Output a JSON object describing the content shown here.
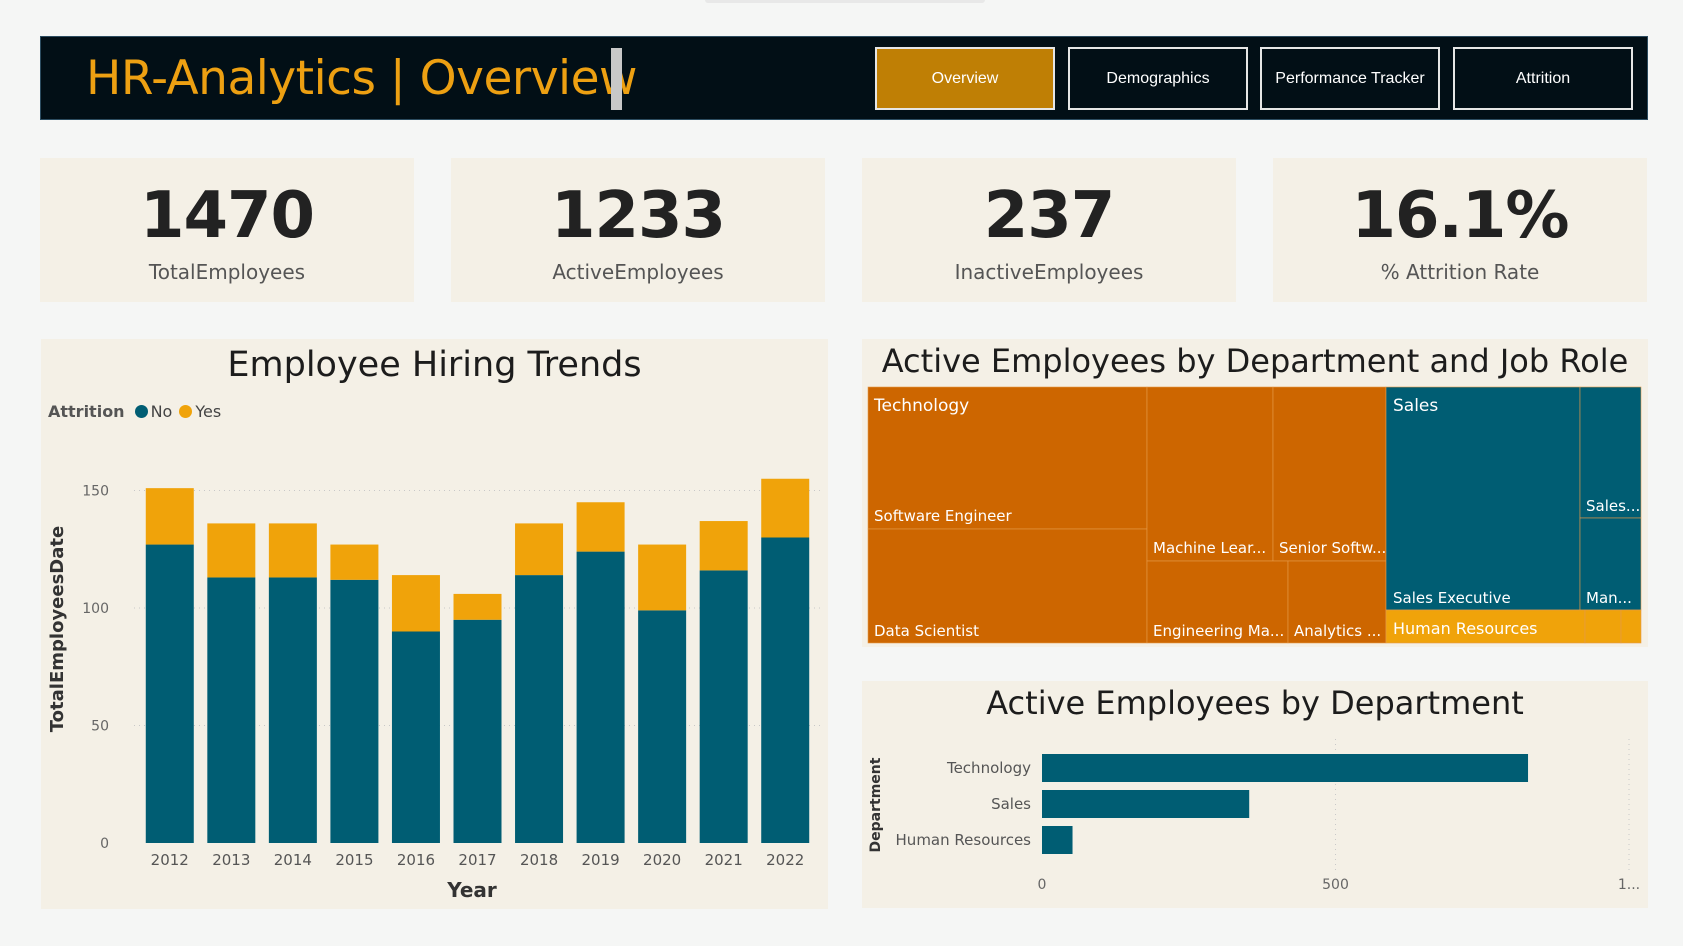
{
  "header": {
    "title": "HR-Analytics | Overview",
    "nav": [
      {
        "label": "Overview",
        "active": true
      },
      {
        "label": "Demographics",
        "active": false
      },
      {
        "label": "Performance Tracker",
        "active": false
      },
      {
        "label": "Attrition",
        "active": false
      }
    ]
  },
  "kpis": [
    {
      "value": "1470",
      "label": "TotalEmployees"
    },
    {
      "value": "1233",
      "label": "ActiveEmployees"
    },
    {
      "value": "237",
      "label": "InactiveEmployees"
    },
    {
      "value": "16.1%",
      "label": "% Attrition Rate"
    }
  ],
  "colors": {
    "teal": "#005d73",
    "amber": "#f0a30a",
    "orange": "#cd6600",
    "gold": "#bf7f05"
  },
  "chart_data": [
    {
      "type": "bar",
      "stacked": true,
      "title": "Employee Hiring Trends",
      "legend_title": "Attrition",
      "xlabel": "Year",
      "ylabel": "TotalEmployeesDate",
      "ylim": [
        0,
        160
      ],
      "yticks": [
        0,
        50,
        100,
        150
      ],
      "categories": [
        "2012",
        "2013",
        "2014",
        "2015",
        "2016",
        "2017",
        "2018",
        "2019",
        "2020",
        "2021",
        "2022"
      ],
      "series": [
        {
          "name": "No",
          "color": "#005d73",
          "values": [
            127,
            113,
            113,
            112,
            90,
            95,
            114,
            124,
            99,
            116,
            130
          ]
        },
        {
          "name": "Yes",
          "color": "#f0a30a",
          "values": [
            24,
            23,
            23,
            15,
            24,
            11,
            22,
            21,
            28,
            21,
            25
          ]
        }
      ],
      "grid": true,
      "legend": "top-left"
    },
    {
      "type": "treemap",
      "title": "Active Employees by Department and Job Role",
      "groups": [
        {
          "name": "Technology",
          "color": "#cd6600",
          "roles": [
            "Software Engineer",
            "Data Scientist",
            "Machine Lear...",
            "Senior Softw...",
            "Engineering Ma...",
            "Analytics ..."
          ]
        },
        {
          "name": "Sales",
          "color": "#005d73",
          "roles": [
            "Sales Executive",
            "Sales...",
            "Man..."
          ]
        },
        {
          "name": "Human Resources",
          "color": "#f0a30a",
          "roles": []
        }
      ]
    },
    {
      "type": "bar",
      "orientation": "horizontal",
      "title": "Active Employees by Department",
      "ylabel": "Department",
      "categories": [
        "Technology",
        "Sales",
        "Human Resources"
      ],
      "values": [
        828,
        353,
        52
      ],
      "color": "#005d73",
      "xlim": [
        0,
        1000
      ],
      "xticks": [
        "0",
        "500",
        "1..."
      ],
      "grid": true
    }
  ]
}
